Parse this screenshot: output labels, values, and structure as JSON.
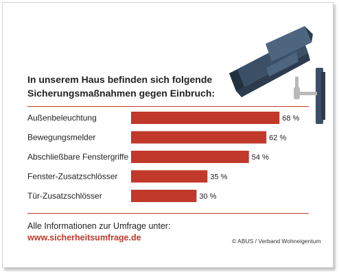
{
  "title": {
    "line1": "In unserem Haus befinden sich folgende",
    "line2": "Sicherungsmaßnahmen gegen Einbruch:"
  },
  "footer": {
    "info_label": "Alle Informationen zur Umfrage unter:",
    "link": "www.sicherheitsumfrage.de",
    "copyright": "© ABUS / Verband Wohneigentum"
  },
  "camera_icon": "security-camera-icon",
  "colors": {
    "bar": "#c0392b",
    "accent": "#c0392b",
    "camera": "#3b4f66"
  },
  "chart_data": {
    "type": "bar",
    "orientation": "horizontal",
    "categories": [
      "Außenbeleuchtung",
      "Bewegungsmelder",
      "Abschließbare Fenstergriffe",
      "Fenster-Zusatzschlösser",
      "Tür-Zusatzschlösser"
    ],
    "values": [
      68,
      62,
      54,
      35,
      30
    ],
    "value_labels": [
      "68 %",
      "62 %",
      "54 %",
      "35 %",
      "30 %"
    ],
    "unit": "%",
    "xlim": [
      0,
      100
    ],
    "grid": false,
    "legend": "none"
  }
}
